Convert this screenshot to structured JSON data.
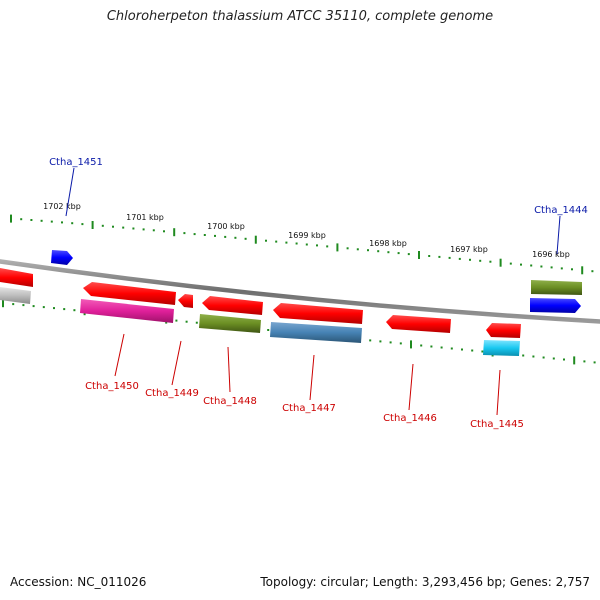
{
  "title": "Chloroherpeton thalassium ATCC 35110, complete genome",
  "footer": {
    "accession": "Accession: NC_011026",
    "summary": "Topology: circular; Length: 3,293,456 bp; Genes: 2,757"
  },
  "ruler": {
    "ticks": [
      {
        "label": "1702 kbp"
      },
      {
        "label": "1701 kbp"
      },
      {
        "label": "1700 kbp"
      },
      {
        "label": "1699 kbp"
      },
      {
        "label": "1698 kbp"
      },
      {
        "label": "1697 kbp"
      },
      {
        "label": "1696 kbp"
      }
    ]
  },
  "genes": {
    "top": [
      {
        "label": "Ctha_1451",
        "color": "#0a1aa8"
      },
      {
        "label": "Ctha_1444",
        "color": "#0a1aa8"
      }
    ],
    "bottom": [
      {
        "label": "Ctha_1450",
        "color": "#cc0000"
      },
      {
        "label": "Ctha_1449",
        "color": "#cc0000"
      },
      {
        "label": "Ctha_1448",
        "color": "#cc0000"
      },
      {
        "label": "Ctha_1447",
        "color": "#cc0000"
      },
      {
        "label": "Ctha_1446",
        "color": "#cc0000"
      },
      {
        "label": "Ctha_1445",
        "color": "#cc0000"
      }
    ]
  },
  "colors": {
    "backbone": "#7a7a7a",
    "tick_green": "#1f8a1f",
    "red": "#ff1a1a",
    "blue": "#1a1aff",
    "olive": "#6b8e23",
    "magenta": "#e0209a",
    "steel": "#4682b4",
    "cyan": "#19c8f0",
    "gray": "#bdbdbd"
  }
}
